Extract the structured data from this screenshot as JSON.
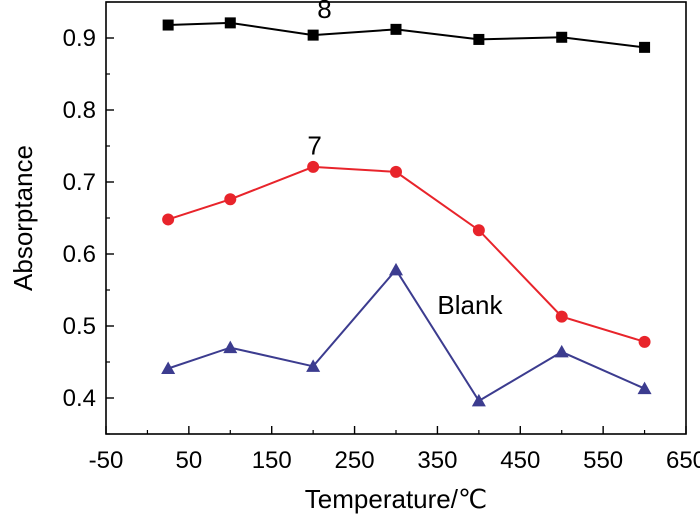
{
  "chart_data": {
    "type": "line",
    "xlabel": "Temperature/℃",
    "ylabel": "Absorptance",
    "xlim": [
      -50,
      650
    ],
    "ylim": [
      0.35,
      0.95
    ],
    "xticks": [
      -50,
      50,
      150,
      250,
      350,
      450,
      550,
      650
    ],
    "yticks": [
      0.4,
      0.5,
      0.6,
      0.7,
      0.8,
      0.9
    ],
    "grid": false,
    "x": [
      25,
      100,
      200,
      300,
      400,
      500,
      600
    ],
    "series": [
      {
        "name": "8",
        "color": "#000000",
        "marker": "square",
        "values": [
          0.918,
          0.921,
          0.904,
          0.912,
          0.898,
          0.901,
          0.887
        ]
      },
      {
        "name": "7",
        "color": "#e8242b",
        "marker": "circle",
        "values": [
          0.648,
          0.676,
          0.721,
          0.714,
          0.633,
          0.513,
          0.478
        ]
      },
      {
        "name": "Blank",
        "color": "#3c3c8f",
        "marker": "triangle",
        "values": [
          0.441,
          0.47,
          0.444,
          0.578,
          0.396,
          0.464,
          0.413
        ]
      }
    ]
  }
}
